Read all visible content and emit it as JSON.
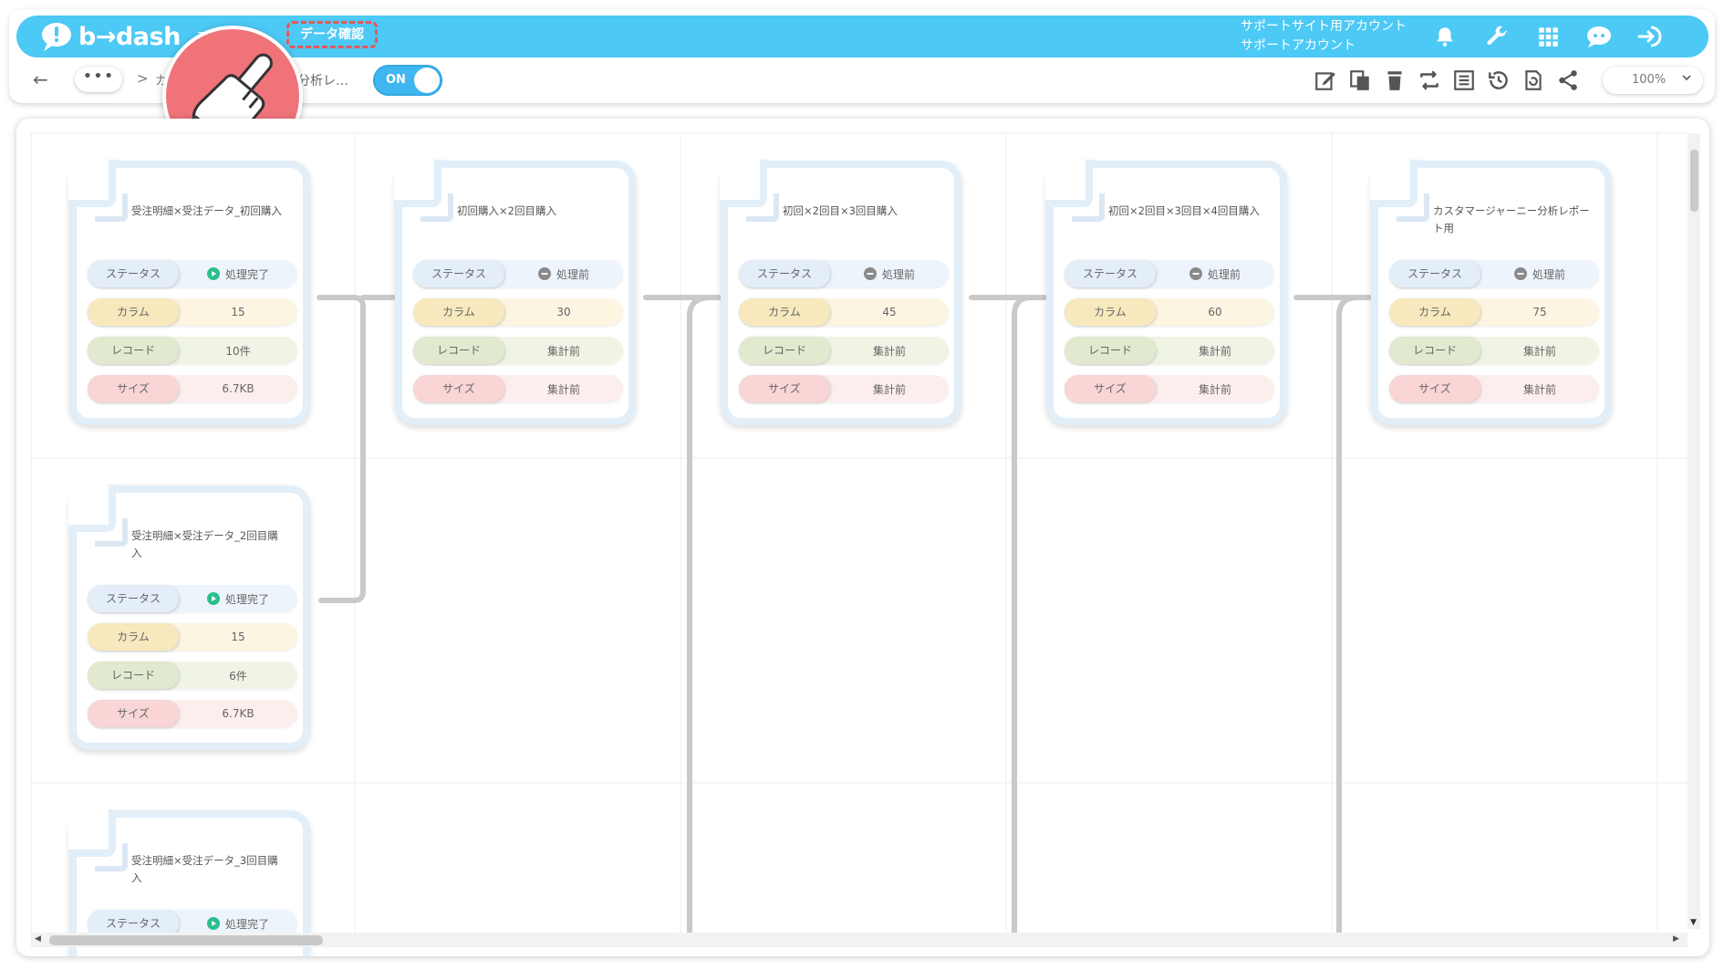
{
  "header": {
    "logo_text": "b→dash",
    "nav_partial": "デ",
    "nav_active": "データ確認",
    "account_line1": "サポートサイト用アカウント",
    "account_line2": "サポートアカウント",
    "icons": [
      "bell-icon",
      "wrench-icon",
      "apps-grid-icon",
      "chatbot-icon",
      "logout-icon"
    ]
  },
  "subbar": {
    "back": "←",
    "crumb_ellipsis": "•••",
    "crumb_separator": ">",
    "crumb_first": "カ",
    "crumb_current": "分析レ…",
    "toggle_label": "ON",
    "toolbar_icons": [
      "edit-icon",
      "copy-icon",
      "trash-icon",
      "swap-icon",
      "list-icon",
      "history-icon",
      "refresh-icon",
      "share-icon"
    ],
    "zoom": "100%"
  },
  "labels": {
    "status": "ステータス",
    "column": "カラム",
    "record": "レコード",
    "size": "サイズ"
  },
  "cards": [
    {
      "title": "受注明細×受注データ_初回購入",
      "status": "処理完了",
      "status_kind": "done",
      "column": "15",
      "record": "10件",
      "size": "6.7KB"
    },
    {
      "title": "初回購入×2回目購入",
      "status": "処理前",
      "status_kind": "pending",
      "column": "30",
      "record": "集計前",
      "size": "集計前"
    },
    {
      "title": "初回×2回目×3回目購入",
      "status": "処理前",
      "status_kind": "pending",
      "column": "45",
      "record": "集計前",
      "size": "集計前"
    },
    {
      "title": "初回×2回目×3回目×4回目購入",
      "status": "処理前",
      "status_kind": "pending",
      "column": "60",
      "record": "集計前",
      "size": "集計前"
    },
    {
      "title": "カスタマージャーニー分析レポート用",
      "status": "処理前",
      "status_kind": "pending",
      "column": "75",
      "record": "集計前",
      "size": "集計前"
    },
    {
      "title": "受注明細×受注データ_2回目購入",
      "status": "処理完了",
      "status_kind": "done",
      "column": "15",
      "record": "6件",
      "size": "6.7KB"
    },
    {
      "title": "受注明細×受注データ_3回目購入",
      "status": "処理完了",
      "status_kind": "done"
    }
  ],
  "colors": {
    "brand": "#4cc9f5",
    "done": "#2bbf8e",
    "pending": "#8a8a8a",
    "highlight": "#e5585a",
    "connector": "#c9c9c9"
  }
}
